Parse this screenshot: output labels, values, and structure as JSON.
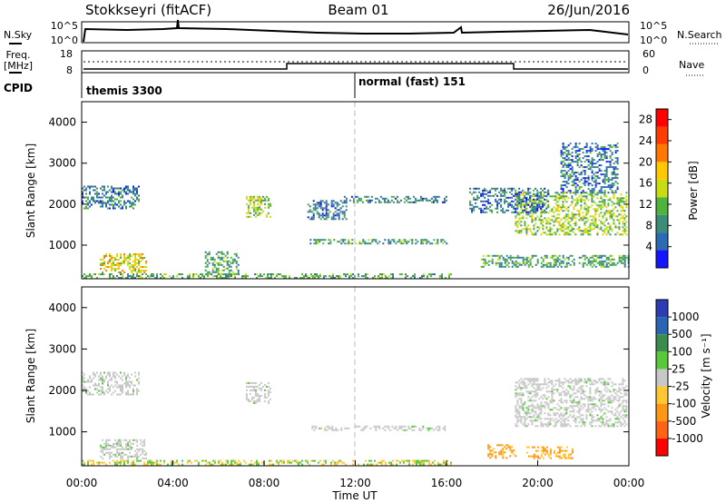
{
  "header": {
    "station": "Stokkseyri (fitACF)",
    "beam": "Beam 01",
    "date": "26/Jun/2016"
  },
  "noise_panel": {
    "left_label": "N.Sky",
    "right_label": "N.Search",
    "left_ticks": [
      "10^5",
      "10^0"
    ],
    "right_ticks": [
      "10^5",
      "10^0"
    ]
  },
  "freq_panel": {
    "left_label_line1": "Freq.",
    "left_label_line2": "[MHz]",
    "right_label": "Nave",
    "left_ticks": [
      "18",
      "8"
    ],
    "right_ticks": [
      "60",
      "0"
    ],
    "cpid_label": "CPID",
    "cpid_segments": [
      {
        "name": "themis 3300",
        "start_hour": 0
      },
      {
        "name": "normal (fast) 151",
        "start_hour": 12
      }
    ]
  },
  "colors": {
    "power_scale": [
      "#1414ff",
      "#2d6ab4",
      "#3c8c78",
      "#50b43c",
      "#c8dc14",
      "#ffc800",
      "#ff7800",
      "#ff3c00",
      "#ff0000"
    ],
    "velocity_scale": [
      "#2c3cb4",
      "#2c64b4",
      "#3c8c50",
      "#5ac83c",
      "#c8c8c8",
      "#ffc832",
      "#ff9614",
      "#ff6414",
      "#ff0000"
    ],
    "ground_scatter": "#c8c8c8"
  },
  "chart_data": [
    {
      "type": "heatmap",
      "name": "power",
      "xlabel": "",
      "ylabel": "Slant Range [km]",
      "xlim_hours": [
        0,
        24
      ],
      "ylim": [
        180,
        4500
      ],
      "y_ticks": [
        1000,
        2000,
        3000,
        4000
      ],
      "colorbar_label": "Power [dB]",
      "colorbar_range": [
        0,
        30
      ],
      "colorbar_ticks": [
        4,
        8,
        12,
        16,
        20,
        24,
        28
      ],
      "echo_regions": [
        {
          "t0": 0.0,
          "t1": 16.2,
          "r0": 200,
          "r1": 310,
          "level": 3
        },
        {
          "t0": 0.8,
          "t1": 2.8,
          "r0": 350,
          "r1": 800,
          "level": 5
        },
        {
          "t0": 0.0,
          "t1": 2.5,
          "r0": 1900,
          "r1": 2450,
          "level": 2
        },
        {
          "t0": 5.4,
          "t1": 6.9,
          "r0": 300,
          "r1": 850,
          "level": 3
        },
        {
          "t0": 7.2,
          "t1": 8.3,
          "r0": 1700,
          "r1": 2200,
          "level": 4
        },
        {
          "t0": 9.9,
          "t1": 11.6,
          "r0": 1650,
          "r1": 2100,
          "level": 2
        },
        {
          "t0": 10.0,
          "t1": 16.0,
          "r0": 1050,
          "r1": 1150,
          "level": 3
        },
        {
          "t0": 11.5,
          "t1": 16.0,
          "r0": 2050,
          "r1": 2200,
          "level": 2
        },
        {
          "t0": 17.5,
          "t1": 24.0,
          "r0": 480,
          "r1": 760,
          "level": 3
        },
        {
          "t0": 19.0,
          "t1": 23.9,
          "r0": 1250,
          "r1": 2300,
          "level": 4
        },
        {
          "t0": 17.0,
          "t1": 20.5,
          "r0": 1800,
          "r1": 2400,
          "level": 2
        },
        {
          "t0": 21.0,
          "t1": 23.5,
          "r0": 2300,
          "r1": 3500,
          "level": 2
        }
      ]
    },
    {
      "type": "heatmap",
      "name": "velocity",
      "xlabel": "Time UT",
      "ylabel": "Slant Range [km]",
      "xlim_hours": [
        0,
        24
      ],
      "ylim": [
        180,
        4500
      ],
      "y_ticks": [
        1000,
        2000,
        3000,
        4000
      ],
      "x_ticks": [
        "00:00",
        "04:00",
        "08:00",
        "12:00",
        "16:00",
        "20:00",
        "00:00"
      ],
      "colorbar_label": "Velocity [m s⁻¹]",
      "colorbar_ticks": [
        "1000",
        "500",
        "100",
        "25",
        "-25",
        "-100",
        "-500",
        "-1000"
      ],
      "echo_regions": [
        {
          "t0": 0.0,
          "t1": 16.2,
          "r0": 200,
          "r1": 320,
          "velocity_class": "positive-slow"
        },
        {
          "t0": 0.8,
          "t1": 2.8,
          "r0": 350,
          "r1": 820,
          "velocity_class": "ground"
        },
        {
          "t0": 0.0,
          "t1": 2.5,
          "r0": 1900,
          "r1": 2450,
          "velocity_class": "ground"
        },
        {
          "t0": 7.2,
          "t1": 8.3,
          "r0": 1700,
          "r1": 2200,
          "velocity_class": "ground"
        },
        {
          "t0": 10.0,
          "t1": 16.0,
          "r0": 1050,
          "r1": 1150,
          "velocity_class": "ground"
        },
        {
          "t0": 17.8,
          "t1": 19.0,
          "r0": 350,
          "r1": 700,
          "velocity_class": "negative"
        },
        {
          "t0": 19.5,
          "t1": 21.5,
          "r0": 350,
          "r1": 650,
          "velocity_class": "negative"
        },
        {
          "t0": 19.0,
          "t1": 23.9,
          "r0": 1150,
          "r1": 2300,
          "velocity_class": "ground"
        }
      ]
    }
  ]
}
